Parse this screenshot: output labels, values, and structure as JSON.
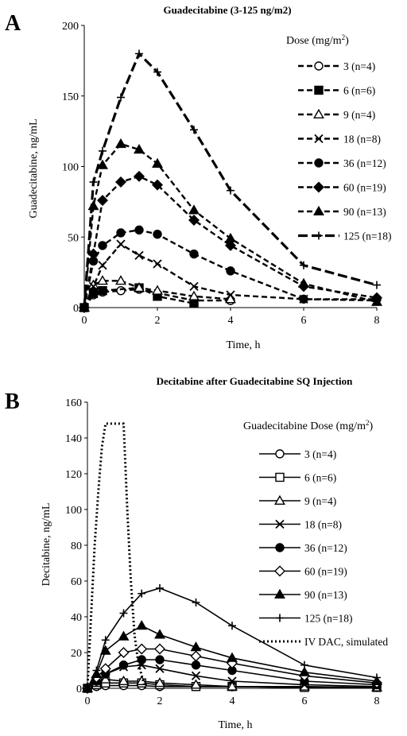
{
  "chart_data": [
    {
      "panel": "A",
      "type": "line",
      "title": "Guadecitabine (3-125 ng/m2)",
      "xlabel": "Time, h",
      "ylabel": "Guadecitabine, ng/mL",
      "xlim": [
        0,
        8
      ],
      "ylim": [
        0,
        200
      ],
      "xticks": [
        0,
        2,
        4,
        6,
        8
      ],
      "yticks": [
        0,
        50,
        100,
        150,
        200
      ],
      "grid": false,
      "legend_title": "Dose (mg/m",
      "legend_title_sup": "2",
      "legend_title_end": ")",
      "legend_position": "right",
      "series": [
        {
          "name": "3 (n=4)",
          "marker": "circle-open",
          "dash": "dashed",
          "x": [
            0,
            0.25,
            0.5,
            1,
            1.5,
            3,
            4
          ],
          "y": [
            0,
            9,
            11,
            12,
            13,
            5,
            5
          ]
        },
        {
          "name": "6 (n=6)",
          "marker": "square-filled",
          "dash": "dashed",
          "x": [
            0,
            0.25,
            0.5,
            1.5,
            2,
            3
          ],
          "y": [
            0,
            10,
            12,
            14,
            8,
            3
          ]
        },
        {
          "name": "9 (n=4)",
          "marker": "triangle-open",
          "dash": "dashed",
          "x": [
            0,
            0.25,
            0.5,
            1,
            1.5,
            2,
            3,
            4
          ],
          "y": [
            0,
            16,
            19,
            19,
            14,
            12,
            8,
            6
          ]
        },
        {
          "name": "18 (n=8)",
          "marker": "x",
          "dash": "dashed",
          "x": [
            0,
            0.25,
            0.5,
            1,
            1.5,
            2,
            3,
            4,
            6,
            8
          ],
          "y": [
            0,
            15,
            30,
            45,
            37,
            31,
            15,
            9,
            6,
            5
          ]
        },
        {
          "name": "36 (n=12)",
          "marker": "circle-filled",
          "dash": "dashed",
          "x": [
            0,
            0.25,
            0.5,
            1,
            1.5,
            2,
            3,
            4,
            6,
            8
          ],
          "y": [
            0,
            33,
            44,
            53,
            55,
            52,
            38,
            26,
            6,
            6
          ]
        },
        {
          "name": "60 (n=19)",
          "marker": "diamond-filled",
          "dash": "dashed",
          "x": [
            0,
            0.25,
            0.5,
            1,
            1.5,
            2,
            3,
            4,
            6,
            8
          ],
          "y": [
            0,
            38,
            76,
            89,
            93,
            87,
            62,
            44,
            15,
            7
          ]
        },
        {
          "name": "90 (n=13)",
          "marker": "triangle-filled",
          "dash": "dashed",
          "x": [
            0,
            0.25,
            0.5,
            1,
            1.5,
            2,
            3,
            4,
            6,
            8
          ],
          "y": [
            0,
            72,
            101,
            116,
            112,
            102,
            69,
            49,
            17,
            4
          ]
        },
        {
          "name": "125 (n=18)",
          "marker": "plus",
          "dash": "longdash",
          "x": [
            0,
            0.25,
            0.5,
            1,
            1.5,
            2,
            3,
            4,
            6,
            8
          ],
          "y": [
            0,
            89,
            111,
            149,
            180,
            167,
            126,
            83,
            30,
            16
          ]
        }
      ]
    },
    {
      "panel": "B",
      "type": "line",
      "title": "Decitabine after Guadecitabine SQ Injection",
      "xlabel": "Time,  h",
      "ylabel": "Decitabine, ng/mL",
      "xlim": [
        0,
        8
      ],
      "ylim": [
        0,
        160
      ],
      "xticks": [
        0,
        2,
        4,
        6,
        8
      ],
      "yticks": [
        0,
        20,
        40,
        60,
        80,
        100,
        120,
        140,
        160
      ],
      "grid": false,
      "legend_title": "Guadecitabine Dose (mg/m",
      "legend_title_sup": "2",
      "legend_title_end": ")",
      "legend_position": "right",
      "series": [
        {
          "name": "3 (n=4)",
          "marker": "circle-open",
          "dash": "solid",
          "x": [
            0,
            0.25,
            0.5,
            1,
            1.5,
            2,
            3,
            4,
            6,
            8
          ],
          "y": [
            0,
            1,
            1.5,
            1.5,
            1.5,
            1,
            1,
            1,
            0.5,
            0.5
          ]
        },
        {
          "name": "6 (n=6)",
          "marker": "square-open",
          "dash": "solid",
          "x": [
            0,
            0.25,
            0.5,
            1,
            1.5,
            2,
            3,
            4,
            6,
            8
          ],
          "y": [
            0,
            2,
            3,
            3,
            3,
            2,
            1,
            1,
            0.5,
            0.5
          ]
        },
        {
          "name": "9 (n=4)",
          "marker": "triangle-open",
          "dash": "solid",
          "x": [
            0,
            0.25,
            0.5,
            1,
            1.5,
            2,
            3,
            4,
            6,
            8
          ],
          "y": [
            0,
            3,
            5,
            4,
            4,
            3,
            2,
            1,
            1,
            0.5
          ]
        },
        {
          "name": "18 (n=8)",
          "marker": "x",
          "dash": "solid",
          "x": [
            0,
            0.25,
            0.5,
            1,
            1.5,
            2,
            3,
            4,
            6,
            8
          ],
          "y": [
            0,
            4,
            8,
            12,
            13,
            11,
            7,
            4,
            2,
            1
          ]
        },
        {
          "name": "36 (n=12)",
          "marker": "circle-filled",
          "dash": "solid",
          "x": [
            0,
            0.25,
            0.5,
            1,
            1.5,
            2,
            3,
            4,
            6,
            8
          ],
          "y": [
            0,
            4,
            8,
            13,
            16,
            16,
            13,
            10,
            4,
            2
          ]
        },
        {
          "name": "60 (n=19)",
          "marker": "diamond-open",
          "dash": "solid",
          "x": [
            0,
            0.25,
            0.5,
            1,
            1.5,
            2,
            3,
            4,
            6,
            8
          ],
          "y": [
            0,
            6,
            11,
            20,
            22,
            22,
            18,
            14,
            7,
            3
          ]
        },
        {
          "name": "90 (n=13)",
          "marker": "triangle-filled",
          "dash": "solid",
          "x": [
            0,
            0.25,
            0.5,
            1,
            1.5,
            2,
            3,
            4,
            6,
            8
          ],
          "y": [
            0,
            8,
            21,
            29,
            35,
            30,
            23,
            17,
            9,
            4
          ]
        },
        {
          "name": "125 (n=18)",
          "marker": "plus",
          "dash": "solid",
          "x": [
            0,
            0.25,
            0.5,
            1,
            1.5,
            2,
            3,
            4,
            6,
            8
          ],
          "y": [
            0,
            10,
            27,
            42,
            53,
            56,
            48,
            35,
            13,
            6
          ]
        },
        {
          "name": "IV DAC, simulated",
          "marker": "none",
          "dash": "dotted",
          "x": [
            0,
            0.1,
            0.2,
            0.3,
            0.4,
            0.5,
            0.6,
            0.7,
            0.8,
            0.9,
            1.0,
            1.1,
            1.2,
            1.3,
            1.4,
            1.5,
            1.6
          ],
          "y": [
            0,
            40,
            80,
            110,
            135,
            148,
            148,
            148,
            148,
            148,
            148,
            100,
            60,
            30,
            15,
            7,
            0
          ]
        }
      ]
    }
  ]
}
